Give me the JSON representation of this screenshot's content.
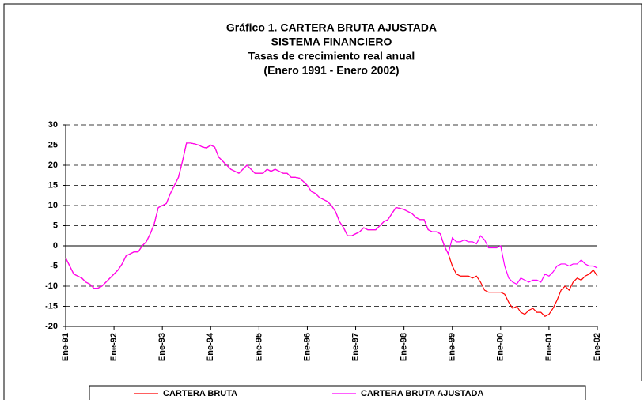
{
  "chart_data": {
    "type": "line",
    "title": [
      "Gráfico 1. CARTERA BRUTA AJUSTADA",
      "SISTEMA FINANCIERO",
      "Tasas de crecimiento real anual",
      "(Enero 1991 - Enero 2002)"
    ],
    "categories": [
      "Ene-91",
      null,
      null,
      null,
      null,
      null,
      null,
      null,
      null,
      null,
      null,
      null,
      "Ene-92",
      null,
      null,
      null,
      null,
      null,
      null,
      null,
      null,
      null,
      null,
      null,
      "Ene-93",
      null,
      null,
      null,
      null,
      null,
      null,
      null,
      null,
      null,
      null,
      null,
      "Ene-94",
      null,
      null,
      null,
      null,
      null,
      null,
      null,
      null,
      null,
      null,
      null,
      "Ene-95",
      null,
      null,
      null,
      null,
      null,
      null,
      null,
      null,
      null,
      null,
      null,
      "Ene-96",
      null,
      null,
      null,
      null,
      null,
      null,
      null,
      null,
      null,
      null,
      null,
      "Ene-97",
      null,
      null,
      null,
      null,
      null,
      null,
      null,
      null,
      null,
      null,
      null,
      "Ene-98",
      null,
      null,
      null,
      null,
      null,
      null,
      null,
      null,
      null,
      null,
      null,
      "Ene-99",
      null,
      null,
      null,
      null,
      null,
      null,
      null,
      null,
      null,
      null,
      null,
      "Ene-00",
      null,
      null,
      null,
      null,
      null,
      null,
      null,
      null,
      null,
      null,
      null,
      "Ene-01",
      null,
      null,
      null,
      null,
      null,
      null,
      null,
      null,
      null,
      null,
      null,
      "Ene-02"
    ],
    "series": [
      {
        "name": "CARTERA BRUTA",
        "color": "#ff0000",
        "values": [
          -3,
          -5,
          -7,
          -7.5,
          -8,
          -9,
          -9.5,
          -10.5,
          -10.5,
          -10,
          -9,
          -8,
          -7,
          -6,
          -4.5,
          -2.5,
          -2,
          -1.5,
          -1.5,
          0,
          1,
          3,
          5.5,
          9.5,
          10,
          10.5,
          13,
          15,
          17,
          21,
          25.5,
          25.5,
          25.3,
          25,
          24.5,
          24.3,
          25,
          24.5,
          22,
          21,
          20,
          19,
          18.5,
          18,
          19,
          20,
          19,
          18,
          18,
          18,
          19,
          18.5,
          19,
          18.5,
          18,
          18,
          17,
          17,
          16.8,
          16,
          15,
          13.5,
          13,
          12,
          11.5,
          11,
          10,
          8.5,
          6,
          4.5,
          2.5,
          2.5,
          3,
          3.5,
          4.5,
          4,
          4,
          4,
          5,
          6,
          6.5,
          8,
          9.5,
          9.3,
          9,
          8.5,
          8,
          7,
          6.5,
          6.5,
          4,
          3.5,
          3.5,
          3,
          0,
          -2,
          -5,
          -7,
          -7.5,
          -7.5,
          -7.5,
          -8,
          -7.5,
          -9,
          -11,
          -11.5,
          -11.5,
          -11.5,
          -11.5,
          -12,
          -14,
          -15.5,
          -15,
          -16.5,
          -17,
          -16,
          -15.5,
          -16.5,
          -16.5,
          -17.5,
          -17,
          -15.5,
          -13.5,
          -11,
          -10,
          -11,
          -9,
          -8,
          -8.5,
          -7.5,
          -7,
          -6,
          -7.5
        ]
      },
      {
        "name": "CARTERA BRUTA AJUSTADA",
        "color": "#ff00ff",
        "values": [
          -3,
          -5,
          -7,
          -7.5,
          -8,
          -9,
          -9.5,
          -10.5,
          -10.5,
          -10,
          -9,
          -8,
          -7,
          -6,
          -4.5,
          -2.5,
          -2,
          -1.5,
          -1.5,
          0,
          1,
          3,
          5.5,
          9.5,
          10,
          10.5,
          13,
          15,
          17,
          21,
          25.5,
          25.5,
          25.3,
          25,
          24.5,
          24.3,
          25,
          24.5,
          22,
          21,
          20,
          19,
          18.5,
          18,
          19,
          20,
          19,
          18,
          18,
          18,
          19,
          18.5,
          19,
          18.5,
          18,
          18,
          17,
          17,
          16.8,
          16,
          15,
          13.5,
          13,
          12,
          11.5,
          11,
          10,
          8.5,
          6,
          4.5,
          2.5,
          2.5,
          3,
          3.5,
          4.5,
          4,
          4,
          4,
          5,
          6,
          6.5,
          8,
          9.5,
          9.3,
          9,
          8.5,
          8,
          7,
          6.5,
          6.5,
          4,
          3.5,
          3.5,
          3,
          0,
          -2,
          2,
          1,
          1,
          1.5,
          1,
          1,
          0.5,
          2.5,
          1.5,
          -0.5,
          -0.5,
          -0.5,
          0,
          -5,
          -8,
          -9,
          -9.5,
          -8,
          -8.5,
          -9,
          -8.5,
          -8.5,
          -9,
          -7,
          -7.5,
          -6.5,
          -5,
          -4.5,
          -4.5,
          -5,
          -4.5,
          -4.5,
          -3.5,
          -4.5,
          -5,
          -5,
          -5.5
        ]
      }
    ],
    "ylim": [
      -20,
      30
    ],
    "yticks": [
      -20,
      -15,
      -10,
      -5,
      0,
      5,
      10,
      15,
      20,
      25,
      30
    ],
    "grid": true
  }
}
